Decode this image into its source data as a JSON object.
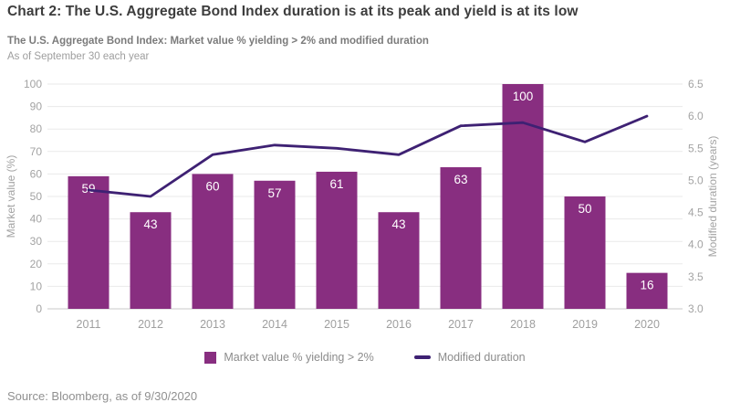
{
  "chart_data": {
    "type": "bar",
    "title": "Chart 2: The U.S. Aggregate Bond Index duration is at its peak and yield is at its low",
    "subtitle": "The U.S. Aggregate Bond Index: Market value % yielding > 2% and modified duration",
    "as_of": "As of September 30 each year",
    "source": "Source: Bloomberg, as of 9/30/2020",
    "categories": [
      "2011",
      "2012",
      "2013",
      "2014",
      "2015",
      "2016",
      "2017",
      "2018",
      "2019",
      "2020"
    ],
    "series": [
      {
        "name": "Market value % yielding > 2%",
        "type": "bar",
        "axis": "left",
        "color": "#882E80",
        "values": [
          59,
          43,
          60,
          57,
          61,
          43,
          63,
          100,
          50,
          16
        ],
        "data_labels": true
      },
      {
        "name": "Modified duration",
        "type": "line",
        "axis": "right",
        "color": "#3E2173",
        "values": [
          4.85,
          4.75,
          5.4,
          5.55,
          5.5,
          5.4,
          5.85,
          5.9,
          5.6,
          6.0
        ]
      }
    ],
    "left_axis": {
      "label": "Market value (%)",
      "min": 0,
      "max": 100,
      "step": 10
    },
    "right_axis": {
      "label": "Modified duration (years)",
      "min": 3.0,
      "max": 6.5,
      "step": 0.5
    },
    "grid": "horizontal",
    "legend_position": "bottom",
    "colors": {
      "background": "#FFFFFF",
      "grid": "#EAEAEA",
      "axis_line": "#C8C8C8",
      "tick_text": "#A3A3A3",
      "axis_title": "#A3A3A3",
      "year_text": "#9F9F9F",
      "bar_label": "#FFFFFF",
      "title_text": "#3D3D3D",
      "subtitle_text": "#7B7B7B",
      "muted_text": "#9E9E9E",
      "legend_text": "#8C8C8C",
      "source_text": "#909090"
    }
  }
}
